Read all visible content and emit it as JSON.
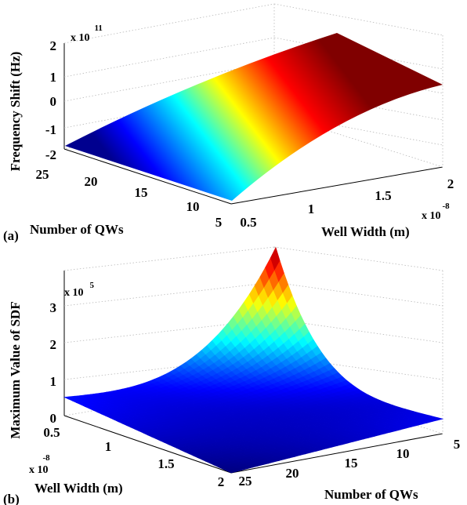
{
  "chart_data": [
    {
      "panel_label": "(a)",
      "type": "surface",
      "zlabel": "Frequency Shift (Hz)",
      "xlabel": "Well Width (m)",
      "ylabel": "Number of QWs",
      "z_multiplier": "x 10",
      "z_exponent": "11",
      "x_multiplier": "x 10",
      "x_exponent": "-8",
      "xlim": [
        0.5,
        2.0
      ],
      "ylim": [
        5,
        25
      ],
      "zlim": [
        -2,
        2
      ],
      "x_ticks": [
        "0.5",
        "1",
        "1.5",
        "2"
      ],
      "y_ticks": [
        "5",
        "10",
        "15",
        "20",
        "25"
      ],
      "z_ticks": [
        "2",
        "1",
        "0",
        "-1",
        "-2"
      ],
      "surface_corners": [
        {
          "x": 0.5,
          "y": 5,
          "z": -1.9
        },
        {
          "x": 0.5,
          "y": 25,
          "z": -1.7
        },
        {
          "x": 2.0,
          "y": 5,
          "z": 1.0
        },
        {
          "x": 2.0,
          "y": 25,
          "z": 2.0
        }
      ],
      "colormap": "jet",
      "grid": true
    },
    {
      "panel_label": "(b)",
      "type": "surface",
      "zlabel": "Maximum Value of SDF",
      "xlabel": "Well Width (m)",
      "ylabel": "Number of QWs",
      "z_multiplier": "x 10",
      "z_exponent": "5",
      "x_multiplier": "x 10",
      "x_exponent": "-8",
      "xlim": [
        0.5,
        2.0
      ],
      "ylim": [
        5,
        25
      ],
      "zlim": [
        0,
        3.5
      ],
      "x_ticks": [
        "0.5",
        "1",
        "1.5",
        "2"
      ],
      "y_ticks": [
        "25",
        "20",
        "15",
        "10",
        "5"
      ],
      "z_ticks": [
        "3",
        "2",
        "1",
        "0"
      ],
      "surface_corners": [
        {
          "x": 0.5,
          "y": 25,
          "z": 0.5
        },
        {
          "x": 0.5,
          "y": 5,
          "z": 3.5
        },
        {
          "x": 2.0,
          "y": 25,
          "z": 0.0
        },
        {
          "x": 2.0,
          "y": 5,
          "z": 0.4
        }
      ],
      "colormap": "jet",
      "grid": true
    }
  ]
}
